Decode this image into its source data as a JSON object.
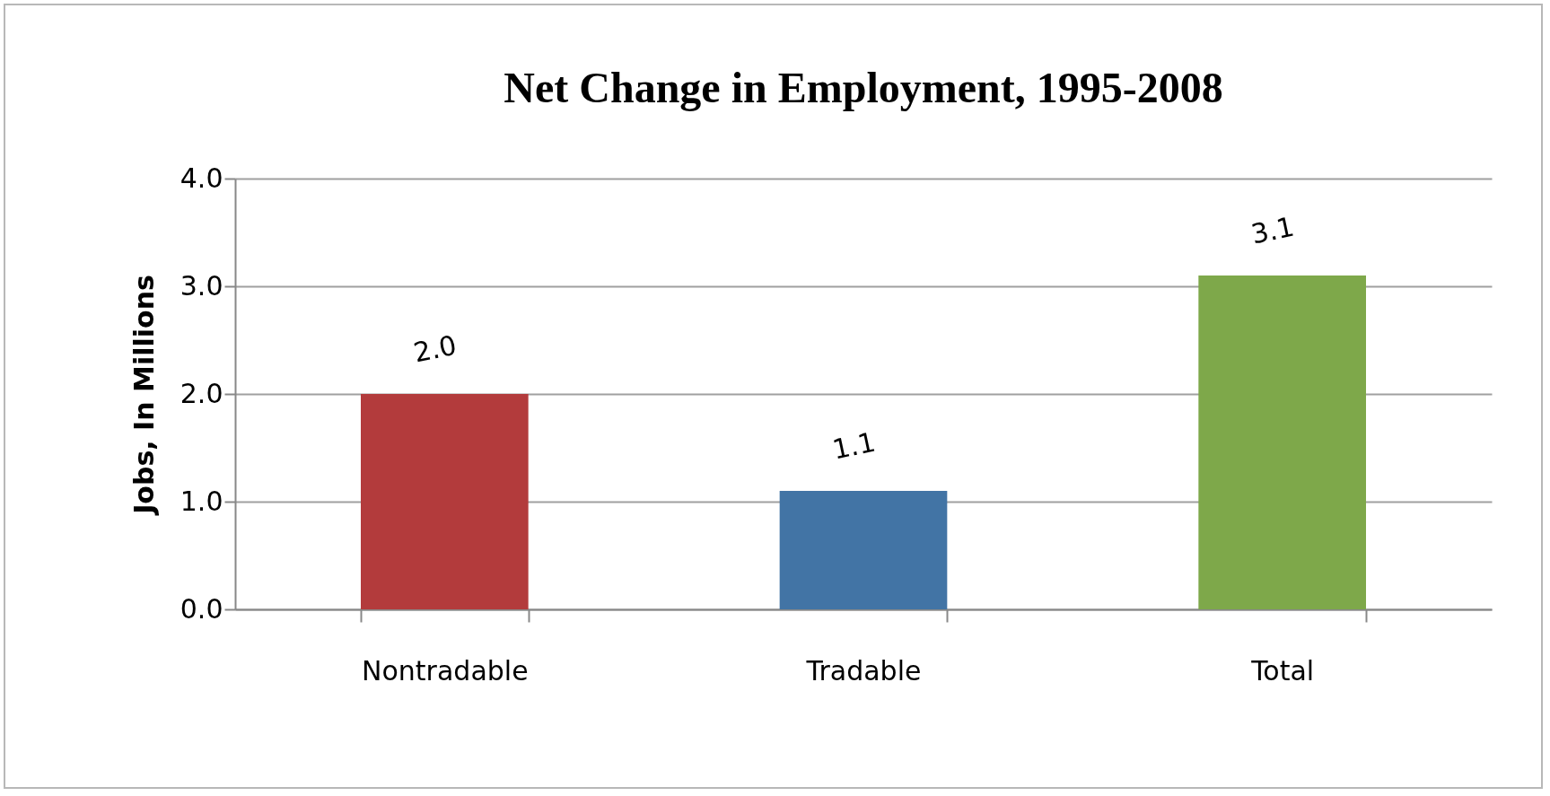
{
  "chart_data": {
    "type": "bar",
    "title": "Net Change in Employment, 1995-2008",
    "ylabel": "Jobs, In Millions",
    "categories": [
      "Nontradable",
      "Tradable",
      "Total"
    ],
    "values": [
      2.0,
      1.1,
      3.1
    ],
    "colors": [
      "#b33b3c",
      "#4274a5",
      "#7ea84a"
    ],
    "value_labels": [
      "2.0",
      "1.1",
      "3.1"
    ],
    "ylim": [
      0,
      4
    ],
    "yticks": [
      {
        "value": 0,
        "label": "0.0"
      },
      {
        "value": 1,
        "label": "1.0"
      },
      {
        "value": 2,
        "label": "2.0"
      },
      {
        "value": 3,
        "label": "3.0"
      },
      {
        "value": 4,
        "label": "4.0"
      }
    ],
    "grid": "y"
  }
}
